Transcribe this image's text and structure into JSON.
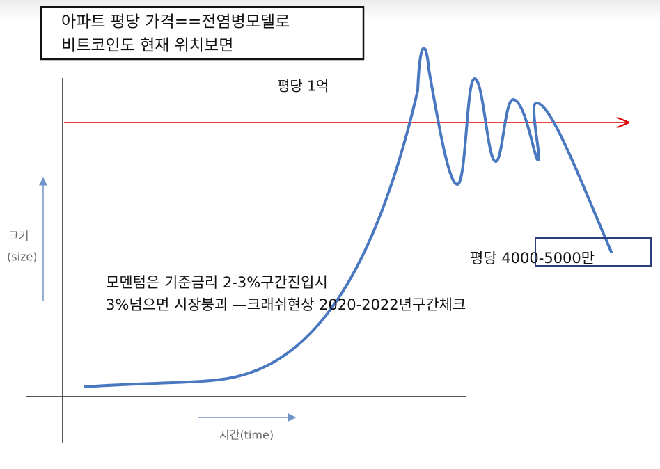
{
  "note_box": {
    "lines": [
      "아파트 평당 가격==전염병모델로",
      "비트코인도 현재 위치보면"
    ]
  },
  "labels": {
    "top_price": "평당 1억",
    "bottom_price": "평당 4000-5000만",
    "y_axis": [
      "크기",
      "(size)"
    ],
    "x_axis": "시간(time)"
  },
  "annotation": {
    "lines": [
      "모멘텀은 기준금리 2-3%구간진입시",
      "3%넘으면 시장붕괴 —크래쉬현상 2020-2022년구간체크"
    ]
  }
}
